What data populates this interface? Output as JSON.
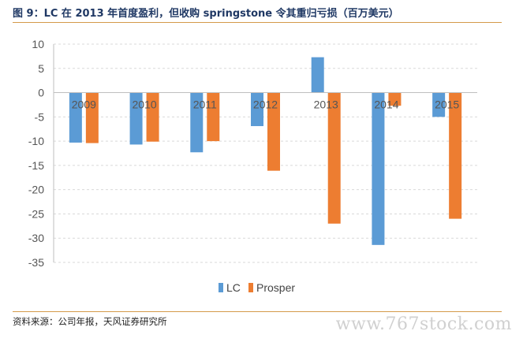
{
  "header": {
    "title": "图 9：LC 在 2013 年首度盈利，但收购 springstone 令其重归亏损（百万美元）"
  },
  "footer": {
    "source": "资料来源：公司年报，天风证券研究所",
    "watermark": "www.767stock.com"
  },
  "colors": {
    "lc": "#5b9bd5",
    "prosper": "#ed7d31",
    "accent_rule": "#d49a4a",
    "title": "#1f3864"
  },
  "chart_data": {
    "type": "bar",
    "categories": [
      "2009",
      "2010",
      "2011",
      "2012",
      "2013",
      "2014",
      "2015"
    ],
    "series": [
      {
        "name": "LC",
        "values": [
          -10.3,
          -10.7,
          -12.3,
          -6.9,
          7.3,
          -31.4,
          -5.0
        ]
      },
      {
        "name": "Prosper",
        "values": [
          -10.4,
          -10.1,
          -10.0,
          -16.1,
          -27.0,
          -2.7,
          -26.0
        ]
      }
    ],
    "yticks": [
      10,
      5,
      0,
      -5,
      -10,
      -15,
      -20,
      -25,
      -30,
      -35
    ],
    "ylim": [
      -35,
      10
    ],
    "grid": true,
    "legend_position": "bottom"
  }
}
